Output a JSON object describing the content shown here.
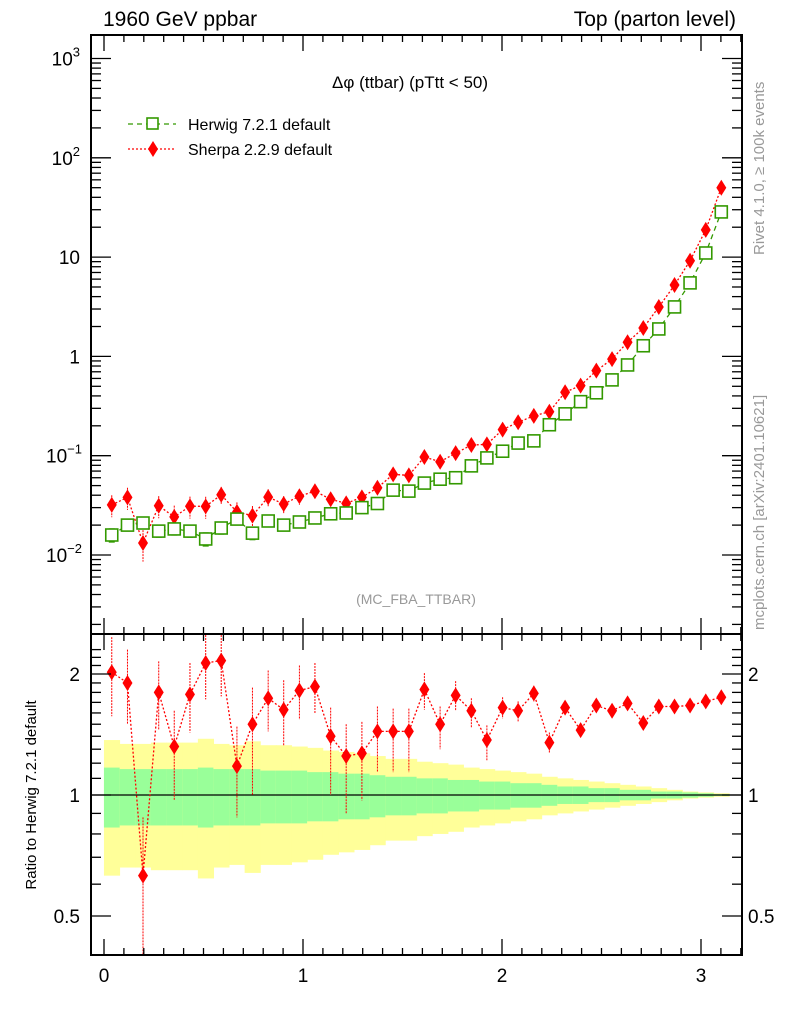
{
  "header": {
    "left_title": "1960 GeV ppbar",
    "right_title": "Top (parton level)"
  },
  "side_labels": {
    "rivet": "Rivet 4.1.0, ≥ 100k events",
    "mcplots": "mcplots.cern.ch [arXiv:2401.10621]"
  },
  "chart_data": [
    {
      "type": "scatter",
      "panel": "main",
      "title": "Δφ (ttbar) (pTtt < 50)",
      "analysis_label": "(MC_FBA_TTBAR)",
      "xlabel": "",
      "ylabel": "",
      "yscale": "log",
      "xlim": [
        0,
        3.2
      ],
      "ylim": [
        0.0012,
        2000
      ],
      "x_ticks": [
        "0",
        "1",
        "2",
        "3"
      ],
      "y_ticks": [
        {
          "value": 1000,
          "base": "10",
          "exp": "3"
        },
        {
          "value": 100,
          "base": "10",
          "exp": "2"
        },
        {
          "value": 10,
          "base": "10",
          "exp": ""
        },
        {
          "value": 1,
          "base": "1",
          "exp": ""
        },
        {
          "value": 0.1,
          "base": "10",
          "exp": "−1"
        },
        {
          "value": 0.01,
          "base": "10",
          "exp": "−2"
        }
      ],
      "legend_position": "top-left",
      "x": [
        0.039,
        0.118,
        0.196,
        0.275,
        0.353,
        0.432,
        0.511,
        0.589,
        0.668,
        0.746,
        0.825,
        0.903,
        0.982,
        1.06,
        1.139,
        1.217,
        1.296,
        1.374,
        1.453,
        1.532,
        1.61,
        1.689,
        1.767,
        1.846,
        1.924,
        2.003,
        2.081,
        2.16,
        2.238,
        2.317,
        2.395,
        2.474,
        2.553,
        2.631,
        2.71,
        2.788,
        2.867,
        2.945,
        3.024,
        3.102
      ],
      "series": [
        {
          "name": "Herwig 7.2.1 default",
          "color": "#339900",
          "marker": "open-square",
          "line": "dashed",
          "values": [
            0.0159,
            0.02,
            0.021,
            0.0174,
            0.0183,
            0.0174,
            0.0145,
            0.0187,
            0.023,
            0.0166,
            0.022,
            0.02,
            0.0215,
            0.0236,
            0.026,
            0.0265,
            0.03,
            0.033,
            0.045,
            0.044,
            0.053,
            0.058,
            0.06,
            0.079,
            0.095,
            0.111,
            0.134,
            0.141,
            0.205,
            0.264,
            0.35,
            0.43,
            0.58,
            0.82,
            1.28,
            1.89,
            3.15,
            5.5,
            11.0,
            28.5
          ],
          "rel_err": [
            0.15,
            0.12,
            0.12,
            0.13,
            0.13,
            0.13,
            0.15,
            0.13,
            0.12,
            0.14,
            0.12,
            0.12,
            0.12,
            0.11,
            0.1,
            0.1,
            0.09,
            0.09,
            0.08,
            0.08,
            0.07,
            0.07,
            0.07,
            0.06,
            0.06,
            0.05,
            0.05,
            0.05,
            0.04,
            0.04,
            0.03,
            0.03,
            0.03,
            0.02,
            0.02,
            0.02,
            0.015,
            0.01,
            0.01,
            0.005
          ]
        },
        {
          "name": "Sherpa 2.2.9 default",
          "color": "#ff0000",
          "marker": "filled-diamond",
          "line": "dotted",
          "values": [
            0.032,
            0.038,
            0.0132,
            0.0313,
            0.0242,
            0.031,
            0.0309,
            0.0404,
            0.0271,
            0.0249,
            0.0383,
            0.0326,
            0.0391,
            0.0439,
            0.0364,
            0.0331,
            0.0381,
            0.0475,
            0.0648,
            0.0634,
            0.097,
            0.087,
            0.106,
            0.128,
            0.13,
            0.183,
            0.217,
            0.252,
            0.277,
            0.436,
            0.508,
            0.718,
            0.94,
            1.39,
            1.93,
            3.14,
            5.23,
            9.19,
            18.8,
            49.9
          ],
          "rel_err": [
            0.25,
            0.25,
            0.35,
            0.25,
            0.3,
            0.25,
            0.25,
            0.2,
            0.25,
            0.25,
            0.2,
            0.2,
            0.18,
            0.17,
            0.17,
            0.17,
            0.15,
            0.13,
            0.12,
            0.12,
            0.1,
            0.1,
            0.09,
            0.08,
            0.08,
            0.07,
            0.06,
            0.05,
            0.05,
            0.04,
            0.04,
            0.03,
            0.03,
            0.02,
            0.02,
            0.015,
            0.01,
            0.01,
            0.01,
            0.005
          ]
        }
      ]
    },
    {
      "type": "scatter",
      "panel": "ratio",
      "ylabel": "Ratio to Herwig 7.2.1 default",
      "xlabel": "",
      "yscale": "log",
      "xlim": [
        0,
        3.2
      ],
      "ylim": [
        0.42,
        2.38
      ],
      "x_ticks": [
        "0",
        "1",
        "2",
        "3"
      ],
      "y_ticks": [
        "0.5",
        "1",
        "2"
      ],
      "reference_line": 1,
      "band_colors": {
        "one_sigma": "#99ff99",
        "two_sigma": "#ffff99"
      },
      "band_1sigma_halfwidth": [
        0.17,
        0.16,
        0.16,
        0.16,
        0.16,
        0.16,
        0.17,
        0.16,
        0.16,
        0.16,
        0.15,
        0.15,
        0.15,
        0.14,
        0.14,
        0.13,
        0.13,
        0.12,
        0.11,
        0.11,
        0.1,
        0.1,
        0.09,
        0.09,
        0.08,
        0.08,
        0.07,
        0.07,
        0.06,
        0.05,
        0.05,
        0.04,
        0.04,
        0.03,
        0.03,
        0.02,
        0.02,
        0.015,
        0.01,
        0.005
      ],
      "band_2sigma_halfwidth": [
        0.37,
        0.34,
        0.34,
        0.35,
        0.35,
        0.35,
        0.38,
        0.34,
        0.33,
        0.36,
        0.33,
        0.33,
        0.32,
        0.31,
        0.29,
        0.28,
        0.27,
        0.25,
        0.23,
        0.23,
        0.21,
        0.2,
        0.19,
        0.17,
        0.16,
        0.15,
        0.14,
        0.13,
        0.11,
        0.1,
        0.09,
        0.08,
        0.07,
        0.06,
        0.05,
        0.04,
        0.03,
        0.02,
        0.015,
        0.01
      ],
      "series": [
        {
          "name": "Sherpa 2.2.9 default / Herwig 7.2.1 default",
          "color": "#ff0000",
          "values": [
            2.02,
            1.9,
            0.63,
            1.8,
            1.32,
            1.78,
            2.13,
            2.16,
            1.18,
            1.5,
            1.74,
            1.63,
            1.82,
            1.86,
            1.4,
            1.25,
            1.27,
            1.44,
            1.44,
            1.44,
            1.83,
            1.5,
            1.77,
            1.62,
            1.37,
            1.65,
            1.62,
            1.79,
            1.35,
            1.65,
            1.45,
            1.67,
            1.62,
            1.69,
            1.51,
            1.66,
            1.66,
            1.67,
            1.71,
            1.75
          ],
          "err_up": [
            0.45,
            0.4,
            0.25,
            0.35,
            0.3,
            0.35,
            0.4,
            0.4,
            0.3,
            0.35,
            0.3,
            0.3,
            0.28,
            0.27,
            0.25,
            0.25,
            0.25,
            0.22,
            0.2,
            0.2,
            0.18,
            0.16,
            0.15,
            0.12,
            0.12,
            0.1,
            0.09,
            0.08,
            0.08,
            0.06,
            0.06,
            0.05,
            0.04,
            0.04,
            0.03,
            0.03,
            0.02,
            0.02,
            0.02,
            0.01
          ],
          "err_down": [
            0.45,
            0.4,
            0.25,
            0.35,
            0.35,
            0.35,
            0.4,
            0.4,
            0.3,
            0.5,
            0.3,
            0.3,
            0.28,
            0.27,
            0.4,
            0.35,
            0.3,
            0.3,
            0.3,
            0.3,
            0.2,
            0.2,
            0.15,
            0.15,
            0.15,
            0.1,
            0.1,
            0.08,
            0.08,
            0.06,
            0.06,
            0.05,
            0.04,
            0.04,
            0.03,
            0.03,
            0.02,
            0.02,
            0.02,
            0.01
          ]
        }
      ]
    }
  ]
}
